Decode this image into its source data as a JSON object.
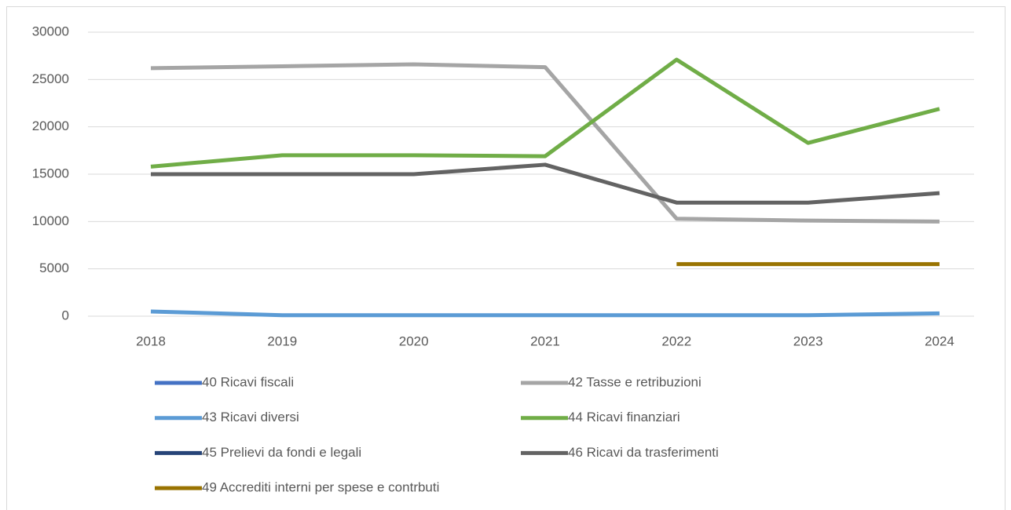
{
  "chart_data": {
    "type": "line",
    "categories": [
      "2018",
      "2019",
      "2020",
      "2021",
      "2022",
      "2023",
      "2024"
    ],
    "series": [
      {
        "name": "40  Ricavi fiscali",
        "color": "#4472c4",
        "values": [
          null,
          null,
          null,
          null,
          null,
          null,
          null
        ]
      },
      {
        "name": "42 Tasse e retribuzioni",
        "color": "#a5a5a5",
        "values": [
          26200,
          26400,
          26600,
          26300,
          10300,
          10100,
          10000
        ]
      },
      {
        "name": "43 Ricavi diversi",
        "color": "#5b9bd5",
        "values": [
          500,
          100,
          100,
          100,
          100,
          100,
          300
        ]
      },
      {
        "name": "44 Ricavi finanziari",
        "color": "#70ad47",
        "values": [
          15800,
          17000,
          17000,
          16900,
          27100,
          18300,
          21900
        ]
      },
      {
        "name": "45 Prelievi da fondi e legali",
        "color": "#264478",
        "values": [
          null,
          null,
          null,
          null,
          null,
          null,
          null
        ]
      },
      {
        "name": "46 Ricavi da trasferimenti",
        "color": "#636363",
        "values": [
          15000,
          15000,
          15000,
          16000,
          12000,
          12000,
          13000
        ]
      },
      {
        "name": "49 Accrediti interni per spese e contrbuti",
        "color": "#997300",
        "values": [
          null,
          null,
          null,
          null,
          5500,
          5500,
          5500
        ]
      }
    ],
    "ylim": [
      0,
      30000
    ],
    "yticks": [
      0,
      5000,
      10000,
      15000,
      20000,
      25000,
      30000
    ],
    "grid": true,
    "legend": "bottom"
  }
}
